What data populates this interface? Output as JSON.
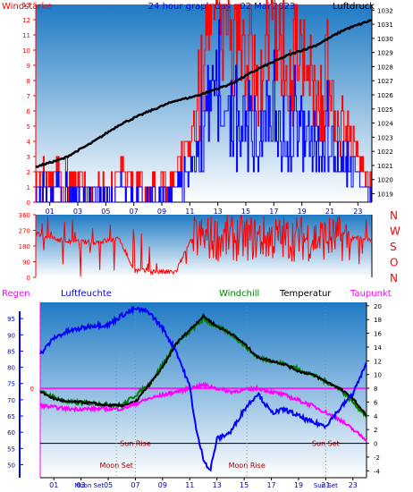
{
  "colors": {
    "wind_gust": "#ff0000",
    "wind_avg": "#0000ff",
    "pressure": "#000000",
    "humidity": "#0000ff",
    "temperature": "#000000",
    "dewpoint": "#ff00ff",
    "windchill": "#008000",
    "axis_red": "#ff0000",
    "axis_blue": "#0000ff",
    "plot_top": "#1f7ac4",
    "plot_bottom": "#ffffff"
  },
  "chart_data": [
    {
      "type": "line",
      "title": "24 hour graph day : 02 Mai 2023",
      "left_label": "Windstärke",
      "right_label": "Luftdruck",
      "xticks": [
        "01",
        "03",
        "05",
        "07",
        "09",
        "11",
        "13",
        "15",
        "17",
        "19",
        "21",
        "23"
      ],
      "y_left_ticks": [
        "0",
        "1",
        "2",
        "3",
        "4",
        "5",
        "6",
        "7",
        "8",
        "9",
        "10",
        "11",
        "12",
        "13"
      ],
      "y_right_ticks": [
        "1019",
        "1020",
        "1021",
        "1022",
        "1023",
        "1024",
        "1025",
        "1026",
        "1027",
        "1028",
        "1029",
        "1030",
        "1031",
        "1032"
      ],
      "ylim_left": [
        0,
        13
      ],
      "ylim_right": [
        1018.4,
        1032.4
      ],
      "series": [
        {
          "name": "Luftdruck",
          "axis": "right",
          "x": [
            0,
            2,
            4,
            6,
            8,
            10,
            11,
            12,
            14,
            16,
            18,
            20,
            22,
            24
          ],
          "values": [
            1020.9,
            1021.5,
            1022.6,
            1023.9,
            1024.8,
            1025.6,
            1025.8,
            1026.1,
            1026.8,
            1027.9,
            1028.8,
            1029.5,
            1030.6,
            1031.3
          ]
        },
        {
          "name": "Windstärke",
          "axis": "left",
          "x": [
            0,
            2,
            4,
            6,
            8,
            10,
            11,
            12,
            13,
            14,
            15,
            16,
            17,
            18,
            19,
            20,
            21,
            22,
            23,
            24
          ],
          "values": [
            2,
            2,
            1,
            2,
            1,
            2,
            4,
            8,
            13,
            10,
            9,
            8,
            12,
            9,
            8,
            7,
            6,
            5,
            3,
            1
          ]
        }
      ]
    },
    {
      "type": "line",
      "series": [
        {
          "name": "Windrichtung",
          "x": [
            0,
            1,
            2,
            4,
            6,
            7,
            9,
            10,
            11,
            12,
            14,
            16,
            18,
            20,
            22,
            23,
            24
          ],
          "values": [
            250,
            230,
            210,
            200,
            220,
            40,
            30,
            30,
            200,
            270,
            250,
            260,
            240,
            220,
            200,
            230,
            220
          ]
        }
      ],
      "y_left_ticks": [
        "0",
        "90",
        "180",
        "270",
        "360"
      ],
      "y_right_labels": [
        "N",
        "W",
        "S",
        "O",
        "N"
      ],
      "ylim": [
        0,
        360
      ]
    },
    {
      "type": "line",
      "labels": {
        "regen": "Regen",
        "luftfeuchte": "Luftfeuchte",
        "windchill": "Windchill",
        "temperatur": "Temperatur",
        "taupunkt": "Taupunkt"
      },
      "xticks": [
        "01",
        "03",
        "05",
        "07",
        "09",
        "11",
        "13",
        "15",
        "17",
        "19",
        "21",
        "23"
      ],
      "y_left_ticks": [
        "50",
        "55",
        "60",
        "65",
        "70",
        "75",
        "80",
        "85",
        "90",
        "95"
      ],
      "y_right_ticks": [
        "-4",
        "-2",
        "0",
        "2",
        "4",
        "6",
        "8",
        "10",
        "12",
        "14",
        "16",
        "18",
        "20"
      ],
      "y_rain_ticks": [
        "0"
      ],
      "ylim_left": [
        46,
        100
      ],
      "ylim_right": [
        -5,
        20.5
      ],
      "annotations": [
        "Sun Rise",
        "Sun Set",
        "Moon Set",
        "Moon Rise",
        "Moon Set",
        "Sun Set"
      ],
      "series": [
        {
          "name": "Luftfeuchte",
          "axis": "left",
          "x": [
            0,
            1,
            2,
            3,
            4,
            5,
            6,
            7,
            8,
            9,
            10,
            11,
            11.5,
            12,
            12.5,
            13,
            14,
            15,
            16,
            17,
            18,
            19,
            20,
            21,
            22,
            23,
            24
          ],
          "values": [
            84,
            89,
            91,
            92,
            93,
            93,
            96,
            98,
            97,
            92,
            85,
            74,
            60,
            52,
            48,
            58,
            60,
            67,
            72,
            66,
            67,
            65,
            63,
            62,
            67,
            72,
            81
          ]
        },
        {
          "name": "Temperatur",
          "axis": "right",
          "x": [
            0,
            1,
            2,
            3,
            4,
            5,
            6,
            7,
            8,
            9,
            10,
            11,
            12,
            13,
            14,
            15,
            16,
            17,
            18,
            19,
            20,
            21,
            22,
            23,
            24
          ],
          "values": [
            7.5,
            6.5,
            6.0,
            6.0,
            5.8,
            5.5,
            5.5,
            6.0,
            8.5,
            11.0,
            14.5,
            16.5,
            18.5,
            17.0,
            16.0,
            14.5,
            12.5,
            12.0,
            11.5,
            10.5,
            10.0,
            9.0,
            8.0,
            6.5,
            4.0
          ]
        },
        {
          "name": "Taupunkt",
          "axis": "right",
          "x": [
            0,
            2,
            4,
            6,
            8,
            10,
            12,
            14,
            16,
            18,
            20,
            22,
            24
          ],
          "values": [
            5.5,
            5.0,
            5.0,
            5.0,
            6.5,
            7.5,
            8.5,
            7.5,
            8.0,
            7.0,
            5.5,
            3.5,
            0.5
          ]
        },
        {
          "name": "Windchill",
          "axis": "right",
          "x": [
            0,
            2,
            4,
            6,
            8,
            10,
            12,
            14,
            16,
            18,
            20,
            22,
            24
          ],
          "values": [
            7.5,
            6.0,
            5.8,
            5.5,
            8.5,
            14.5,
            18.0,
            16.0,
            12.5,
            11.5,
            10.0,
            8.0,
            4.0
          ]
        }
      ]
    }
  ]
}
